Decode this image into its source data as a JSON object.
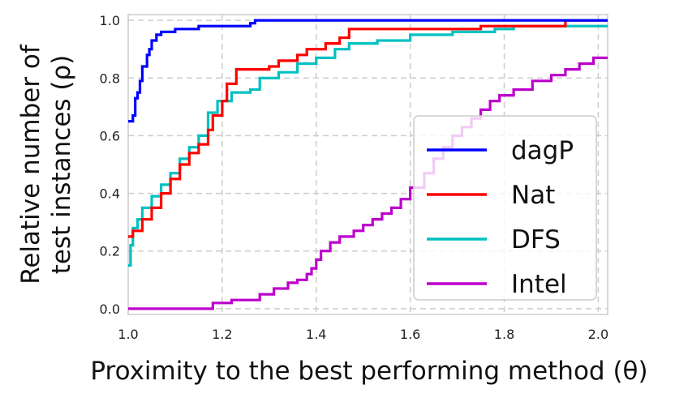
{
  "chart_data": {
    "type": "line",
    "title": "",
    "xlabel": "Proximity to the best performing method (θ)",
    "ylabel_line1": "Relative number of",
    "ylabel_line2": "test instances (ρ)",
    "xlim": [
      1.0,
      2.02
    ],
    "ylim": [
      -0.02,
      1.02
    ],
    "x_ticks": [
      "1.0",
      "1.2",
      "1.4",
      "1.6",
      "1.8",
      "2.0"
    ],
    "y_ticks": [
      "0.0",
      "0.2",
      "0.4",
      "0.6",
      "0.8",
      "1.0"
    ],
    "grid": true,
    "legend_position": "lower-right",
    "series": [
      {
        "name": "dagP",
        "color": "#0000ff",
        "points": [
          [
            1.0,
            0.65
          ],
          [
            1.01,
            0.67
          ],
          [
            1.015,
            0.73
          ],
          [
            1.02,
            0.75
          ],
          [
            1.025,
            0.79
          ],
          [
            1.03,
            0.84
          ],
          [
            1.04,
            0.88
          ],
          [
            1.045,
            0.9
          ],
          [
            1.05,
            0.93
          ],
          [
            1.06,
            0.95
          ],
          [
            1.07,
            0.96
          ],
          [
            1.1,
            0.97
          ],
          [
            1.15,
            0.98
          ],
          [
            1.26,
            0.99
          ],
          [
            1.27,
            1.0
          ],
          [
            2.02,
            1.0
          ]
        ]
      },
      {
        "name": "Nat",
        "color": "#ff0000",
        "points": [
          [
            1.0,
            0.25
          ],
          [
            1.01,
            0.27
          ],
          [
            1.03,
            0.31
          ],
          [
            1.05,
            0.35
          ],
          [
            1.07,
            0.4
          ],
          [
            1.09,
            0.45
          ],
          [
            1.11,
            0.5
          ],
          [
            1.13,
            0.54
          ],
          [
            1.15,
            0.57
          ],
          [
            1.17,
            0.62
          ],
          [
            1.18,
            0.67
          ],
          [
            1.2,
            0.72
          ],
          [
            1.21,
            0.78
          ],
          [
            1.23,
            0.83
          ],
          [
            1.3,
            0.84
          ],
          [
            1.32,
            0.86
          ],
          [
            1.36,
            0.88
          ],
          [
            1.38,
            0.9
          ],
          [
            1.42,
            0.92
          ],
          [
            1.45,
            0.94
          ],
          [
            1.47,
            0.97
          ],
          [
            1.6,
            0.97
          ],
          [
            1.75,
            0.98
          ],
          [
            1.93,
            1.0
          ],
          [
            2.02,
            1.0
          ]
        ]
      },
      {
        "name": "DFS",
        "color": "#00c0c0",
        "points": [
          [
            1.0,
            0.15
          ],
          [
            1.005,
            0.22
          ],
          [
            1.01,
            0.28
          ],
          [
            1.02,
            0.31
          ],
          [
            1.03,
            0.35
          ],
          [
            1.05,
            0.39
          ],
          [
            1.07,
            0.43
          ],
          [
            1.09,
            0.47
          ],
          [
            1.11,
            0.52
          ],
          [
            1.13,
            0.56
          ],
          [
            1.15,
            0.6
          ],
          [
            1.17,
            0.68
          ],
          [
            1.19,
            0.72
          ],
          [
            1.22,
            0.75
          ],
          [
            1.26,
            0.76
          ],
          [
            1.28,
            0.8
          ],
          [
            1.32,
            0.82
          ],
          [
            1.36,
            0.85
          ],
          [
            1.4,
            0.87
          ],
          [
            1.44,
            0.9
          ],
          [
            1.47,
            0.92
          ],
          [
            1.53,
            0.93
          ],
          [
            1.6,
            0.95
          ],
          [
            1.69,
            0.96
          ],
          [
            1.78,
            0.97
          ],
          [
            1.82,
            0.98
          ],
          [
            2.02,
            0.98
          ]
        ]
      },
      {
        "name": "Intel",
        "color": "#bb00cc",
        "points": [
          [
            1.0,
            0.0
          ],
          [
            1.17,
            0.0
          ],
          [
            1.18,
            0.02
          ],
          [
            1.22,
            0.03
          ],
          [
            1.28,
            0.05
          ],
          [
            1.31,
            0.07
          ],
          [
            1.34,
            0.09
          ],
          [
            1.36,
            0.1
          ],
          [
            1.38,
            0.12
          ],
          [
            1.39,
            0.14
          ],
          [
            1.4,
            0.17
          ],
          [
            1.41,
            0.2
          ],
          [
            1.43,
            0.23
          ],
          [
            1.45,
            0.25
          ],
          [
            1.48,
            0.27
          ],
          [
            1.5,
            0.29
          ],
          [
            1.52,
            0.31
          ],
          [
            1.54,
            0.33
          ],
          [
            1.56,
            0.35
          ],
          [
            1.58,
            0.38
          ],
          [
            1.6,
            0.42
          ],
          [
            1.63,
            0.47
          ],
          [
            1.65,
            0.52
          ],
          [
            1.67,
            0.56
          ],
          [
            1.69,
            0.6
          ],
          [
            1.71,
            0.63
          ],
          [
            1.73,
            0.66
          ],
          [
            1.75,
            0.69
          ],
          [
            1.77,
            0.72
          ],
          [
            1.79,
            0.74
          ],
          [
            1.82,
            0.76
          ],
          [
            1.86,
            0.79
          ],
          [
            1.9,
            0.81
          ],
          [
            1.93,
            0.83
          ],
          [
            1.96,
            0.85
          ],
          [
            1.99,
            0.87
          ],
          [
            2.02,
            0.87
          ]
        ]
      }
    ]
  }
}
